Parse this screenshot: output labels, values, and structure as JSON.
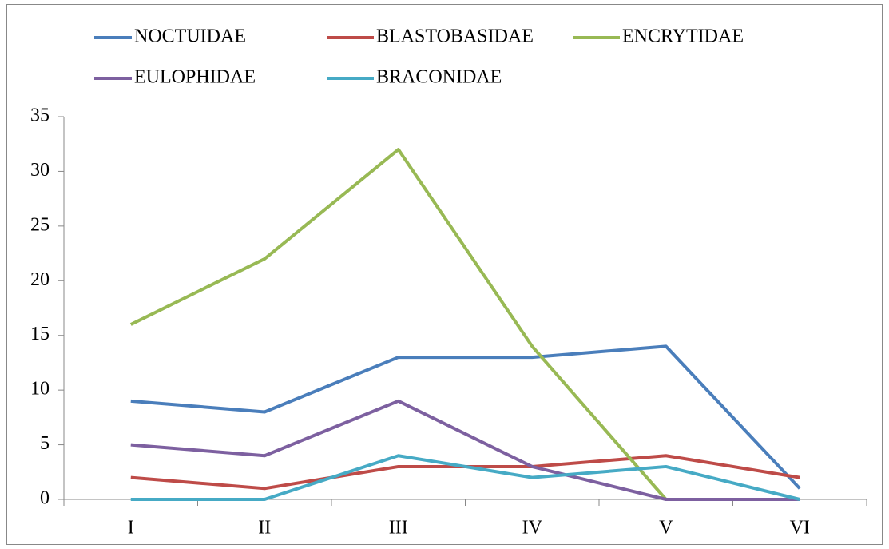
{
  "chart_data": {
    "type": "line",
    "categories": [
      "I",
      "II",
      "III",
      "IV",
      "V",
      "VI"
    ],
    "series": [
      {
        "name": "NOCTUIDAE",
        "color": "#4a7ebb",
        "values": [
          9,
          8,
          13,
          13,
          14,
          1
        ]
      },
      {
        "name": "BLASTOBASIDAE",
        "color": "#be4b48",
        "values": [
          2,
          1,
          3,
          3,
          4,
          2
        ]
      },
      {
        "name": "ENCRYTIDAE",
        "color": "#98b954",
        "values": [
          16,
          22,
          32,
          14,
          0,
          0
        ]
      },
      {
        "name": "EULOPHIDAE",
        "color": "#7d60a0",
        "values": [
          5,
          4,
          9,
          3,
          0,
          0
        ]
      },
      {
        "name": "BRACONIDAE",
        "color": "#46aac5",
        "values": [
          0,
          0,
          4,
          2,
          3,
          0
        ]
      }
    ],
    "ylim": [
      0,
      35
    ],
    "yticks": [
      0,
      5,
      10,
      15,
      20,
      25,
      30,
      35
    ],
    "grid": false,
    "legend": "top"
  }
}
